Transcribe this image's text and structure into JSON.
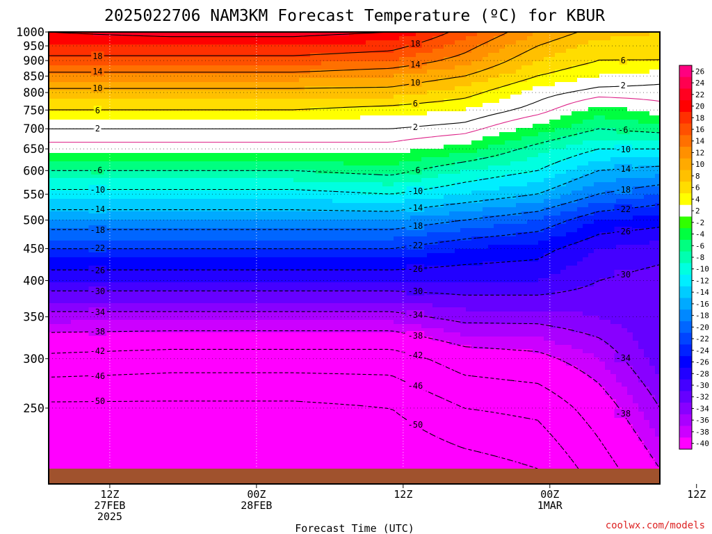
{
  "chart_data": {
    "type": "heatmap",
    "title": "2025022706 NAM3KM Forecast Temperature (ºC) for KBUR",
    "xlabel": "Forecast Time (UTC)",
    "ylabel": "",
    "credit": "coolwx.com/models",
    "x_hours_range": [
      -5,
      45
    ],
    "y_pressure_hpa_range": [
      1000,
      200
    ],
    "grid": true,
    "y_ticks": [
      "250",
      "300",
      "350",
      "400",
      "450",
      "500",
      "550",
      "600",
      "650",
      "700",
      "750",
      "800",
      "850",
      "900",
      "950",
      "1000"
    ],
    "x_ticks": [
      {
        "hour": 0,
        "lines": [
          "12Z",
          "27FEB",
          "2025"
        ]
      },
      {
        "hour": 12,
        "lines": [
          "00Z",
          "28FEB"
        ]
      },
      {
        "hour": 24,
        "lines": [
          "12Z"
        ]
      },
      {
        "hour": 36,
        "lines": [
          "00Z",
          "1MAR"
        ]
      },
      {
        "hour": 48,
        "lines": [
          "12Z"
        ]
      }
    ],
    "colorbar": {
      "levels": [
        "26",
        "24",
        "22",
        "20",
        "18",
        "16",
        "14",
        "12",
        "10",
        "8",
        "6",
        "4",
        "2",
        "-2",
        "-4",
        "-6",
        "-8",
        "-10",
        "-12",
        "-14",
        "-16",
        "-18",
        "-20",
        "-22",
        "-24",
        "-26",
        "-28",
        "-30",
        "-32",
        "-34",
        "-36",
        "-38",
        "-40"
      ],
      "colors": [
        "#ff0080",
        "#ff0050",
        "#ff0020",
        "#ff0000",
        "#ff3000",
        "#ff5000",
        "#ff7000",
        "#ff9000",
        "#ffaa00",
        "#ffc000",
        "#ffdd00",
        "#ffff00",
        "#ffffff",
        "#30ff00",
        "#00ff40",
        "#00ff80",
        "#00ffb0",
        "#00ffe0",
        "#00eeff",
        "#00ccff",
        "#00aaff",
        "#0088ff",
        "#0066ff",
        "#0044ff",
        "#0022ff",
        "#0000ff",
        "#2200ff",
        "#4400ff",
        "#6600ff",
        "#8800ff",
        "#aa00ff",
        "#cc00ff",
        "#ff00ff"
      ]
    },
    "profile_levels_hpa": [
      1000,
      950,
      900,
      850,
      800,
      750,
      700,
      650,
      600,
      550,
      500,
      450,
      400,
      350,
      300,
      250,
      200
    ],
    "profiles": [
      {
        "hour": -5,
        "temps": [
          22,
          20,
          17,
          13,
          9,
          6,
          2,
          -1,
          -6,
          -11,
          -16,
          -22,
          -28,
          -35,
          -43,
          -51,
          -55
        ]
      },
      {
        "hour": 5,
        "temps": [
          23,
          20,
          17,
          13,
          9,
          6,
          2,
          -1,
          -6,
          -11,
          -16,
          -22,
          -28,
          -35,
          -44,
          -51,
          -55
        ]
      },
      {
        "hour": 15,
        "temps": [
          23,
          20,
          17,
          13,
          9,
          6,
          2,
          -1,
          -6,
          -11,
          -16,
          -22,
          -28,
          -35,
          -44,
          -51,
          -55
        ]
      },
      {
        "hour": 23,
        "temps": [
          22,
          19,
          16,
          12,
          9,
          5,
          2,
          -1,
          -5,
          -10,
          -16,
          -22,
          -28,
          -35,
          -44,
          -50,
          -54
        ]
      },
      {
        "hour": 29,
        "temps": [
          17,
          15,
          13,
          10,
          7,
          4,
          1,
          -3,
          -8,
          -12,
          -18,
          -24,
          -28,
          -33,
          -40,
          -46,
          -52
        ]
      },
      {
        "hour": 35,
        "temps": [
          12,
          10,
          8,
          6,
          3,
          1,
          -3,
          -7,
          -10,
          -14,
          -20,
          -25,
          -28,
          -33,
          -39,
          -45,
          -50
        ]
      },
      {
        "hour": 40,
        "temps": [
          9,
          7,
          6,
          4,
          1,
          -3,
          -6,
          -10,
          -14,
          -18,
          -24,
          -28,
          -30,
          -32,
          -36,
          -40,
          -44
        ]
      },
      {
        "hour": 45,
        "temps": [
          8,
          7,
          6,
          3,
          1,
          -1,
          -5,
          -10,
          -15,
          -20,
          -25,
          -29,
          -31,
          -30,
          -31,
          -34,
          -38
        ]
      }
    ],
    "contour_levels": [
      -50,
      -46,
      -42,
      -38,
      -34,
      -30,
      -26,
      -22,
      -18,
      -14,
      -10,
      -6,
      2,
      6,
      10,
      14,
      18,
      22
    ]
  }
}
